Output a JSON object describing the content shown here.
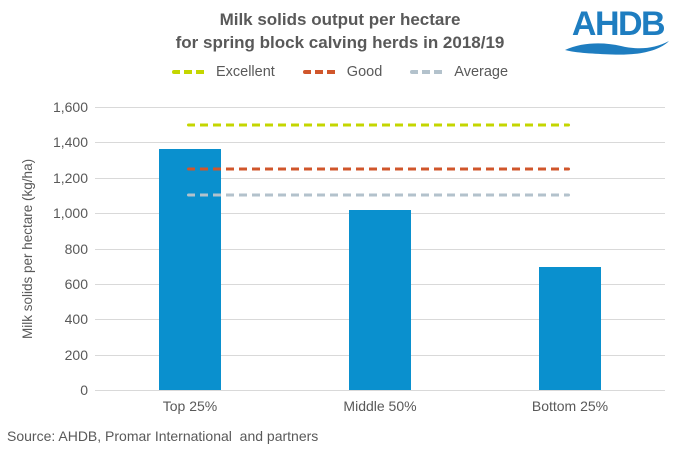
{
  "header": {
    "title_line1": "Milk solids output per hectare",
    "title_line2": "for spring block calving herds in 2018/19",
    "logo_text": "AHDB"
  },
  "source_text": "Source: AHDB, Promar International  and partners",
  "colors": {
    "bar_blue": "#0A90CE",
    "logo_blue": "#1E7DC0",
    "excellent_green": "#C4D600",
    "good_orange": "#D0562B",
    "average_grey": "#B3C2CC",
    "gridline_grey": "#D9D9D9",
    "text_grey": "#595959"
  },
  "chart_data": {
    "type": "bar",
    "title": "Milk solids output per hectare for spring block calving herds in 2018/19",
    "categories": [
      "Top 25%",
      "Middle 50%",
      "Bottom 25%"
    ],
    "values": [
      1360,
      1015,
      695
    ],
    "xlabel": "",
    "ylabel": "Milk solids per hectare (kg/ha)",
    "ylim": [
      0,
      1600
    ],
    "grid": true,
    "legend_position": "top",
    "bar_color": "#0A90CE",
    "yticks": [
      {
        "value": 0,
        "label": "0"
      },
      {
        "value": 200,
        "label": "200"
      },
      {
        "value": 400,
        "label": "400"
      },
      {
        "value": 600,
        "label": "600"
      },
      {
        "value": 800,
        "label": "800"
      },
      {
        "value": 1000,
        "label": "1,000"
      },
      {
        "value": 1200,
        "label": "1,200"
      },
      {
        "value": 1400,
        "label": "1,400"
      },
      {
        "value": 1600,
        "label": "1,600"
      }
    ],
    "reference_lines": [
      {
        "name": "Excellent",
        "value": 1500,
        "color": "#C4D600"
      },
      {
        "name": "Good",
        "value": 1250,
        "color": "#D0562B"
      },
      {
        "name": "Average",
        "value": 1100,
        "color": "#B3C2CC"
      }
    ]
  }
}
